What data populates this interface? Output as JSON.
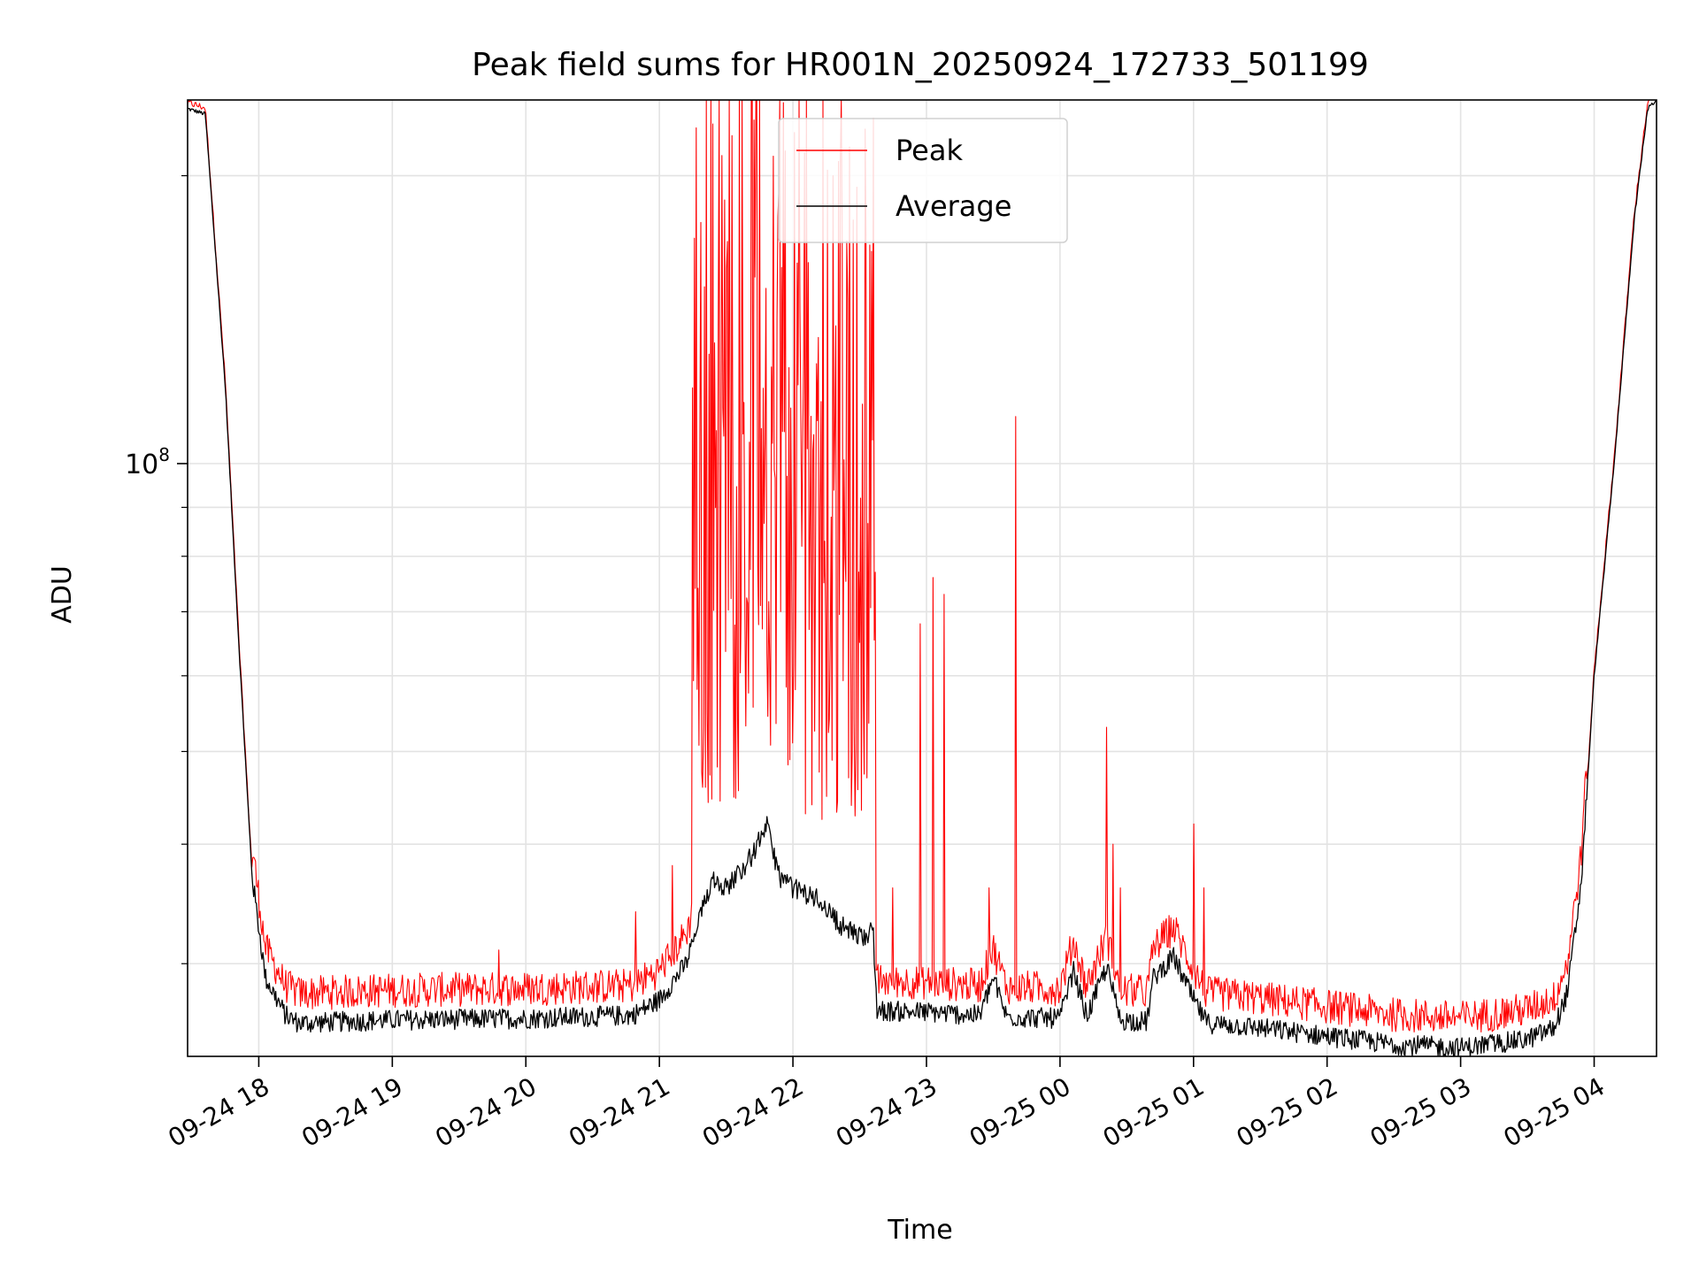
{
  "chart_data": {
    "type": "line",
    "title": "Peak field sums for HR001N_20250924_172733_501199",
    "xlabel": "Time",
    "ylabel": "ADU",
    "yscale": "log",
    "ylim": [
      24000000,
      240000000
    ],
    "xlim_hours": [
      17.467,
      28.467
    ],
    "x_ticks": [
      {
        "hour": 18,
        "label": "09-24 18"
      },
      {
        "hour": 19,
        "label": "09-24 19"
      },
      {
        "hour": 20,
        "label": "09-24 20"
      },
      {
        "hour": 21,
        "label": "09-24 21"
      },
      {
        "hour": 22,
        "label": "09-24 22"
      },
      {
        "hour": 23,
        "label": "09-24 23"
      },
      {
        "hour": 24,
        "label": "09-25 00"
      },
      {
        "hour": 25,
        "label": "09-25 01"
      },
      {
        "hour": 26,
        "label": "09-25 02"
      },
      {
        "hour": 27,
        "label": "09-25 03"
      },
      {
        "hour": 28,
        "label": "09-25 04"
      }
    ],
    "y_major_ticks": [
      {
        "value": 100000000,
        "base": "10",
        "exp": "8"
      }
    ],
    "y_minor_ticks": [
      30000000,
      40000000,
      50000000,
      60000000,
      70000000,
      80000000,
      90000000,
      200000000
    ],
    "grid": true,
    "legend": {
      "position": "upper-center",
      "entries": [
        "Peak",
        "Average"
      ]
    },
    "series": [
      {
        "name": "Peak",
        "color": "#ff0000"
      },
      {
        "name": "Average",
        "color": "#000000"
      }
    ],
    "average_profile": [
      [
        17.467,
        235000000
      ],
      [
        17.6,
        232000000
      ],
      [
        17.75,
        120000000
      ],
      [
        17.85,
        65000000
      ],
      [
        17.95,
        37000000
      ],
      [
        18.05,
        29000000
      ],
      [
        18.2,
        26500000
      ],
      [
        18.3,
        26000000
      ],
      [
        19.0,
        26200000
      ],
      [
        20.0,
        26300000
      ],
      [
        20.8,
        26500000
      ],
      [
        21.0,
        27500000
      ],
      [
        21.2,
        30000000
      ],
      [
        21.4,
        37000000
      ],
      [
        21.5,
        36000000
      ],
      [
        21.7,
        39000000
      ],
      [
        21.8,
        42000000
      ],
      [
        21.9,
        37000000
      ],
      [
        22.0,
        36000000
      ],
      [
        22.2,
        35000000
      ],
      [
        22.35,
        33000000
      ],
      [
        22.5,
        32000000
      ],
      [
        22.6,
        32500000
      ],
      [
        22.63,
        26800000
      ],
      [
        23.0,
        26700000
      ],
      [
        23.4,
        26500000
      ],
      [
        23.5,
        29000000
      ],
      [
        23.6,
        26400000
      ],
      [
        24.0,
        26300000
      ],
      [
        24.1,
        29500000
      ],
      [
        24.2,
        26400000
      ],
      [
        24.35,
        29800000
      ],
      [
        24.45,
        26200000
      ],
      [
        24.65,
        26100000
      ],
      [
        24.7,
        29000000
      ],
      [
        24.85,
        30500000
      ],
      [
        25.0,
        27500000
      ],
      [
        25.1,
        26000000
      ],
      [
        25.4,
        25800000
      ],
      [
        25.6,
        25600000
      ],
      [
        26.0,
        25200000
      ],
      [
        26.5,
        24700000
      ],
      [
        27.0,
        24500000
      ],
      [
        27.5,
        25000000
      ],
      [
        27.7,
        25700000
      ],
      [
        27.8,
        28000000
      ],
      [
        27.9,
        36000000
      ],
      [
        28.0,
        60000000
      ],
      [
        28.15,
        100000000
      ],
      [
        28.3,
        180000000
      ],
      [
        28.4,
        235000000
      ],
      [
        28.467,
        240000000
      ]
    ],
    "peak_spikes": [
      {
        "hour": 19.8,
        "value": 31000000
      },
      {
        "hour": 20.82,
        "value": 34000000
      },
      {
        "hour": 21.1,
        "value": 38000000
      },
      {
        "hour": 21.25,
        "value": 120000000
      },
      {
        "hour": 21.3,
        "value": 90000000
      },
      {
        "hour": 21.5,
        "value": 160000000
      },
      {
        "hour": 21.6,
        "value": 240000000
      },
      {
        "hour": 21.75,
        "value": 240000000
      },
      {
        "hour": 21.9,
        "value": 240000000
      },
      {
        "hour": 22.1,
        "value": 240000000
      },
      {
        "hour": 22.3,
        "value": 200000000
      },
      {
        "hour": 22.55,
        "value": 170000000
      },
      {
        "hour": 22.75,
        "value": 36000000
      },
      {
        "hour": 22.95,
        "value": 68000000
      },
      {
        "hour": 23.05,
        "value": 76000000
      },
      {
        "hour": 23.13,
        "value": 73000000
      },
      {
        "hour": 23.47,
        "value": 36000000
      },
      {
        "hour": 23.67,
        "value": 112000000
      },
      {
        "hour": 24.35,
        "value": 53000000
      },
      {
        "hour": 24.4,
        "value": 40000000
      },
      {
        "hour": 24.45,
        "value": 36000000
      },
      {
        "hour": 25.0,
        "value": 42000000
      },
      {
        "hour": 25.08,
        "value": 36000000
      }
    ]
  }
}
